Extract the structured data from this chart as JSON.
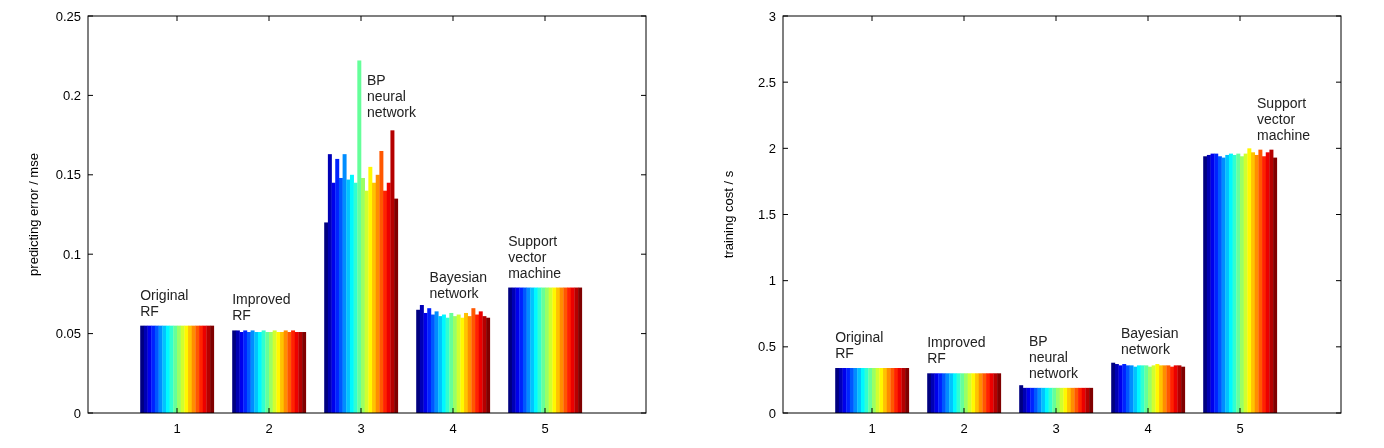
{
  "chart_data": [
    {
      "type": "bar",
      "ylabel": "predicting error / mse",
      "categories": [
        "1",
        "2",
        "3",
        "4",
        "5"
      ],
      "ylim": [
        0,
        0.25
      ],
      "yticks": [
        0,
        0.05,
        0.1,
        0.15,
        0.2,
        0.25
      ],
      "grid": false,
      "series": [
        {
          "color": "#000080",
          "values": [
            0.055,
            0.052,
            0.12,
            0.065,
            0.079
          ]
        },
        {
          "color": "#0000b5",
          "values": [
            0.055,
            0.052,
            0.163,
            0.068,
            0.079
          ]
        },
        {
          "color": "#0000eb",
          "values": [
            0.055,
            0.051,
            0.145,
            0.063,
            0.079
          ]
        },
        {
          "color": "#0022ff",
          "values": [
            0.055,
            0.052,
            0.16,
            0.066,
            0.079
          ]
        },
        {
          "color": "#0057ff",
          "values": [
            0.055,
            0.051,
            0.148,
            0.062,
            0.079
          ]
        },
        {
          "color": "#008dff",
          "values": [
            0.055,
            0.052,
            0.163,
            0.064,
            0.079
          ]
        },
        {
          "color": "#00c3ff",
          "values": [
            0.055,
            0.051,
            0.147,
            0.061,
            0.079
          ]
        },
        {
          "color": "#00f8ff",
          "values": [
            0.055,
            0.051,
            0.15,
            0.062,
            0.079
          ]
        },
        {
          "color": "#2fffd0",
          "values": [
            0.055,
            0.052,
            0.145,
            0.06,
            0.079
          ]
        },
        {
          "color": "#65ff9a",
          "values": [
            0.055,
            0.051,
            0.222,
            0.063,
            0.079
          ]
        },
        {
          "color": "#9aff65",
          "values": [
            0.055,
            0.051,
            0.148,
            0.061,
            0.079
          ]
        },
        {
          "color": "#d0ff2f",
          "values": [
            0.055,
            0.052,
            0.14,
            0.062,
            0.079
          ]
        },
        {
          "color": "#fff800",
          "values": [
            0.055,
            0.051,
            0.155,
            0.06,
            0.079
          ]
        },
        {
          "color": "#ffc300",
          "values": [
            0.055,
            0.051,
            0.145,
            0.063,
            0.079
          ]
        },
        {
          "color": "#ff8d00",
          "values": [
            0.055,
            0.052,
            0.15,
            0.061,
            0.079
          ]
        },
        {
          "color": "#ff5700",
          "values": [
            0.055,
            0.051,
            0.165,
            0.066,
            0.079
          ]
        },
        {
          "color": "#ff2200",
          "values": [
            0.055,
            0.052,
            0.14,
            0.062,
            0.079
          ]
        },
        {
          "color": "#eb0000",
          "values": [
            0.055,
            0.051,
            0.145,
            0.064,
            0.079
          ]
        },
        {
          "color": "#b50000",
          "values": [
            0.055,
            0.051,
            0.178,
            0.061,
            0.079
          ]
        },
        {
          "color": "#800000",
          "values": [
            0.055,
            0.051,
            0.135,
            0.06,
            0.079
          ]
        }
      ],
      "annotations": [
        "Original RF",
        "Improved RF",
        "BP neural network",
        "Bayesian network",
        "Support vector machine"
      ]
    },
    {
      "type": "bar",
      "ylabel": "training cost / s",
      "categories": [
        "1",
        "2",
        "3",
        "4",
        "5"
      ],
      "ylim": [
        0,
        3
      ],
      "yticks": [
        0,
        0.5,
        1,
        1.5,
        2,
        2.5,
        3
      ],
      "grid": false,
      "series": [
        {
          "color": "#000080",
          "values": [
            0.34,
            0.3,
            0.21,
            0.38,
            1.94
          ]
        },
        {
          "color": "#0000b5",
          "values": [
            0.34,
            0.3,
            0.19,
            0.37,
            1.95
          ]
        },
        {
          "color": "#0000eb",
          "values": [
            0.34,
            0.3,
            0.19,
            0.36,
            1.96
          ]
        },
        {
          "color": "#0022ff",
          "values": [
            0.34,
            0.3,
            0.19,
            0.37,
            1.96
          ]
        },
        {
          "color": "#0057ff",
          "values": [
            0.34,
            0.3,
            0.19,
            0.36,
            1.94
          ]
        },
        {
          "color": "#008dff",
          "values": [
            0.34,
            0.3,
            0.19,
            0.36,
            1.93
          ]
        },
        {
          "color": "#00c3ff",
          "values": [
            0.34,
            0.3,
            0.19,
            0.35,
            1.95
          ]
        },
        {
          "color": "#00f8ff",
          "values": [
            0.34,
            0.3,
            0.19,
            0.36,
            1.96
          ]
        },
        {
          "color": "#2fffd0",
          "values": [
            0.34,
            0.3,
            0.19,
            0.36,
            1.95
          ]
        },
        {
          "color": "#65ff9a",
          "values": [
            0.34,
            0.3,
            0.19,
            0.36,
            1.96
          ]
        },
        {
          "color": "#9aff65",
          "values": [
            0.34,
            0.3,
            0.19,
            0.35,
            1.94
          ]
        },
        {
          "color": "#d0ff2f",
          "values": [
            0.34,
            0.3,
            0.19,
            0.36,
            1.96
          ]
        },
        {
          "color": "#fff800",
          "values": [
            0.34,
            0.3,
            0.19,
            0.37,
            2.0
          ]
        },
        {
          "color": "#ffc300",
          "values": [
            0.34,
            0.3,
            0.19,
            0.36,
            1.97
          ]
        },
        {
          "color": "#ff8d00",
          "values": [
            0.34,
            0.3,
            0.19,
            0.36,
            1.95
          ]
        },
        {
          "color": "#ff5700",
          "values": [
            0.34,
            0.3,
            0.19,
            0.36,
            1.99
          ]
        },
        {
          "color": "#ff2200",
          "values": [
            0.34,
            0.3,
            0.19,
            0.35,
            1.94
          ]
        },
        {
          "color": "#eb0000",
          "values": [
            0.34,
            0.3,
            0.19,
            0.36,
            1.97
          ]
        },
        {
          "color": "#b50000",
          "values": [
            0.34,
            0.3,
            0.19,
            0.36,
            1.99
          ]
        },
        {
          "color": "#800000",
          "values": [
            0.34,
            0.3,
            0.19,
            0.35,
            1.93
          ]
        }
      ],
      "annotations": [
        "Original RF",
        "Improved RF",
        "BP neural network",
        "Bayesian network",
        "Support vector machine"
      ]
    }
  ]
}
